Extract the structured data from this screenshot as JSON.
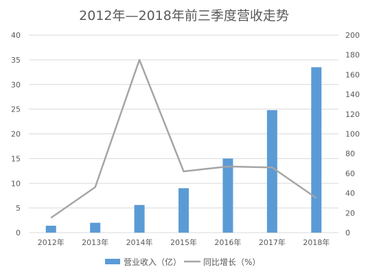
{
  "chart_data": {
    "type": "bar+line",
    "title": "2012年—2018年前三季度营收走势",
    "categories": [
      "2012年",
      "2013年",
      "2014年",
      "2015年",
      "2016年",
      "2017年",
      "2018年"
    ],
    "series": [
      {
        "name": "营业收入（亿）",
        "type": "bar",
        "axis": "left",
        "values": [
          1.4,
          2.0,
          5.6,
          9.0,
          15.0,
          24.8,
          33.5
        ]
      },
      {
        "name": "同比增长（%）",
        "type": "line",
        "axis": "right",
        "values": [
          15,
          46,
          175,
          62,
          67,
          66,
          35
        ]
      }
    ],
    "ylim_left": [
      0,
      40
    ],
    "yticks_left": [
      "0",
      "5",
      "10",
      "15",
      "20",
      "25",
      "30",
      "35",
      "40"
    ],
    "ylim_right": [
      0,
      200
    ],
    "yticks_right": [
      "0",
      "20",
      "40",
      "60",
      "80",
      "100",
      "120",
      "140",
      "160",
      "180",
      "200"
    ],
    "grid": true,
    "legend_position": "bottom",
    "colors": {
      "bar": "#5b9bd5",
      "line": "#a5a5a5",
      "grid": "#d9d9d9",
      "text": "#595959"
    }
  }
}
